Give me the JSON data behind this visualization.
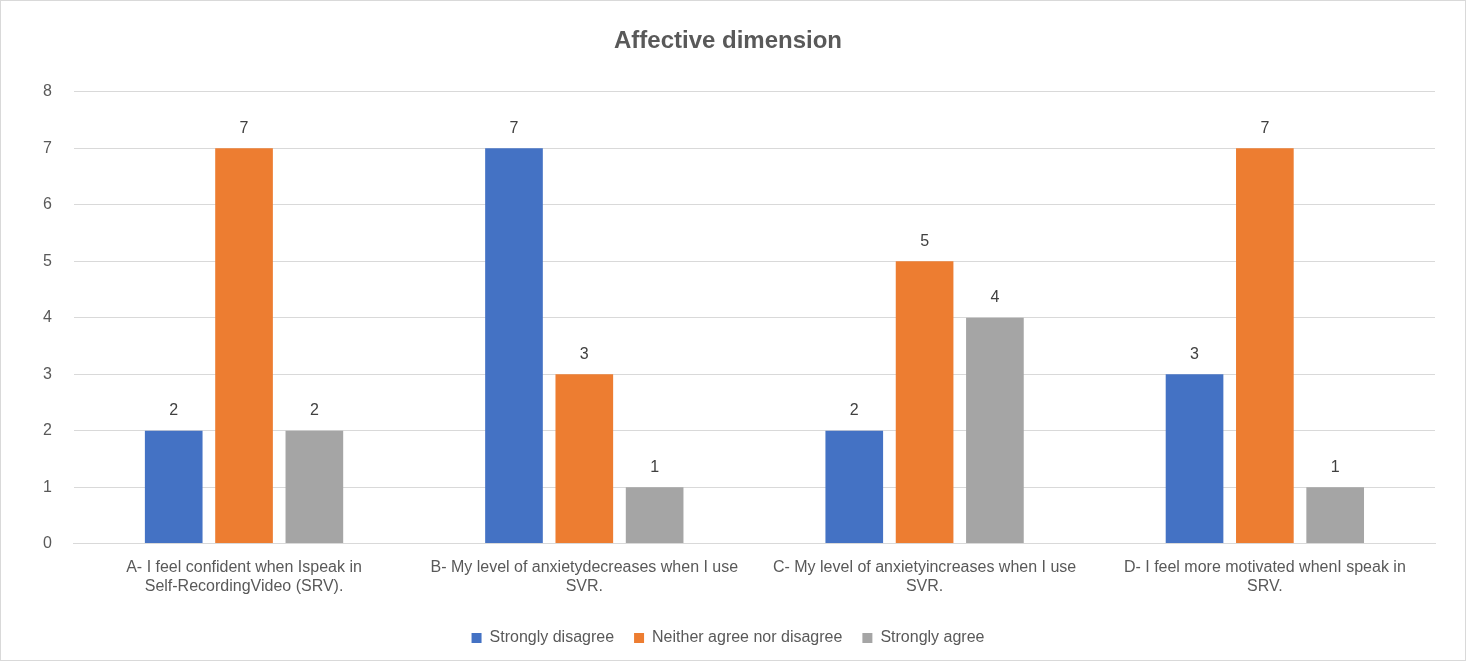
{
  "chart_data": {
    "type": "bar",
    "title": "Affective dimension",
    "categories": [
      "A- I feel confident when Ispeak in Self-RecordingVideo (SRV).",
      "B- My level of anxietydecreases when I use SVR.",
      "C- My level of anxietyincreases when I use SVR.",
      "D- I feel more motivated whenI speak in SRV."
    ],
    "series": [
      {
        "name": "Strongly disagree",
        "color": "#4472c4",
        "values": [
          2,
          7,
          2,
          3
        ]
      },
      {
        "name": "Neither agree nor disagree",
        "color": "#ed7d31",
        "values": [
          7,
          3,
          5,
          7
        ]
      },
      {
        "name": "Strongly agree",
        "color": "#a5a5a5",
        "values": [
          2,
          1,
          4,
          1
        ]
      }
    ],
    "ylim": [
      0,
      8
    ],
    "yticks": [
      0,
      1,
      2,
      3,
      4,
      5,
      6,
      7,
      8
    ],
    "grid": "y",
    "legend": "bottom",
    "data_labels": true
  }
}
